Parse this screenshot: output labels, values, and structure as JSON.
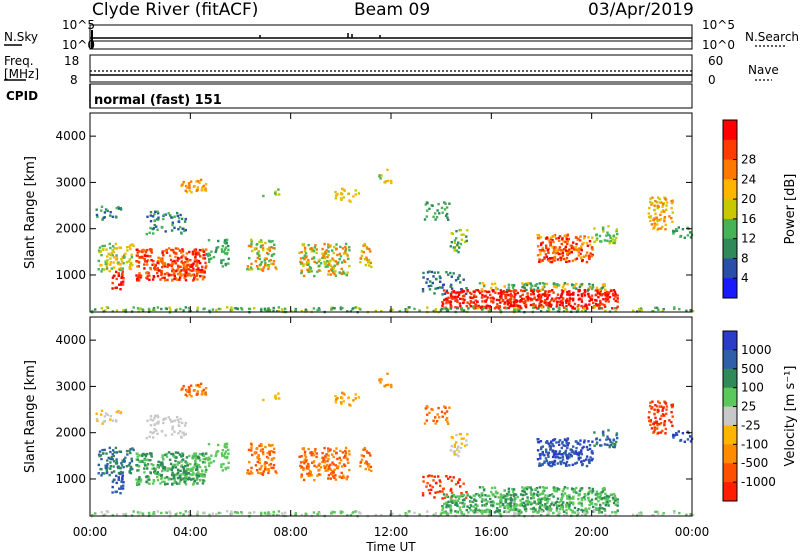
{
  "header": {
    "station": "Clyde River (fitACF)",
    "beam": "Beam 09",
    "date": "03/Apr/2019"
  },
  "strips": {
    "nsky_label": "N.Sky",
    "nsky_ticks": [
      "10^5",
      "10^0"
    ],
    "nsearch_label": "N.Search",
    "nsearch_ticks": [
      "10^5",
      "10^0"
    ],
    "freq_label": "Freq.",
    "freq_unit": "[MHz]",
    "freq_ticks": [
      "18",
      "8"
    ],
    "nave_label": "Nave",
    "nave_ticks": [
      "60",
      "0"
    ],
    "cpid_label": "CPID",
    "cpid_value": "normal (fast) 151"
  },
  "colors": {
    "power": [
      "#1a1aff",
      "#2a4fa8",
      "#2e8b57",
      "#46b456",
      "#c8c800",
      "#ffb400",
      "#ff7800",
      "#ff3c00",
      "#ff0000"
    ],
    "velocity": [
      "#2a3cc8",
      "#2f5fa8",
      "#2e8b57",
      "#5ac85a",
      "#c8c8c8",
      "#ffb400",
      "#ff8c00",
      "#ff5000",
      "#ff1e00"
    ]
  },
  "chart_data": [
    {
      "type": "heatmap",
      "ylabel": "Slant Range [km]",
      "ylim": [
        200,
        4500
      ],
      "yticks": [
        1000,
        2000,
        3000,
        4000
      ],
      "colorbar_label": "Power [dB]",
      "colorbar_ticks": [
        "4",
        "8",
        "12",
        "16",
        "20",
        "24",
        "28"
      ],
      "colorbar_range": [
        0,
        32
      ]
    },
    {
      "type": "heatmap",
      "xlabel": "Time UT",
      "xlim": [
        0,
        24
      ],
      "xticks": [
        "00:00",
        "04:00",
        "08:00",
        "12:00",
        "16:00",
        "20:00",
        "00:00"
      ],
      "ylabel": "Slant Range [km]",
      "ylim": [
        200,
        4500
      ],
      "yticks": [
        1000,
        2000,
        3000,
        4000
      ],
      "colorbar_label": "Velocity [m s⁻¹]",
      "colorbar_ticks": [
        "1000",
        "500",
        "100",
        "25",
        "-25",
        "-100",
        "-500",
        "-1000"
      ]
    }
  ]
}
